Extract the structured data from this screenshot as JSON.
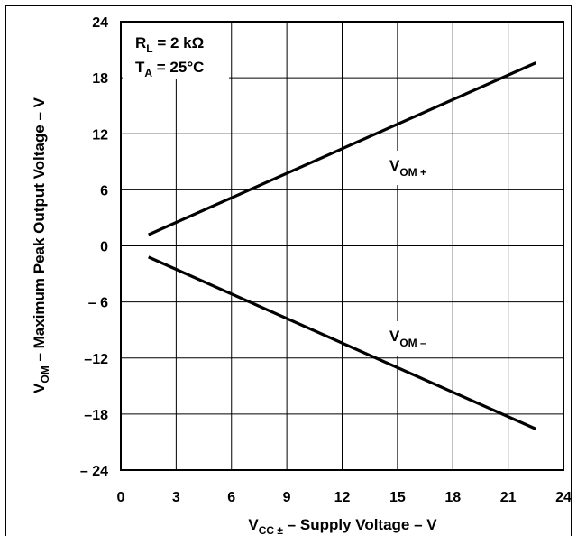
{
  "chart_data": {
    "type": "line",
    "xlabel": {
      "main": "V",
      "sub": "CC ±",
      "rest": " – Supply Voltage – V"
    },
    "ylabel": {
      "main": "V",
      "sub": "OM",
      "rest": " – Maximum Peak Output Voltage – V"
    },
    "xlim": [
      0,
      24
    ],
    "ylim": [
      -24,
      24
    ],
    "x_ticks": [
      0,
      3,
      6,
      9,
      12,
      15,
      18,
      21,
      24
    ],
    "y_ticks": [
      24,
      18,
      12,
      6,
      0,
      -6,
      -12,
      -18,
      -24
    ],
    "x_tick_labels": [
      "0",
      "3",
      "6",
      "9",
      "12",
      "15",
      "18",
      "21",
      "24"
    ],
    "y_tick_labels": [
      "24",
      "18",
      "12",
      "6",
      "0",
      "– 6",
      "–12",
      "–18",
      "– 24"
    ],
    "grid": true,
    "annotations": {
      "rl": {
        "main": "R",
        "sub": "L",
        "rest": " = 2 kΩ"
      },
      "ta": {
        "main": "T",
        "sub": "A",
        "rest": " = 25°C"
      }
    },
    "series": [
      {
        "name": {
          "main": "V",
          "sub": "OM +"
        },
        "x": [
          1.5,
          22.5
        ],
        "y": [
          1.2,
          19.6
        ]
      },
      {
        "name": {
          "main": "V",
          "sub": "OM –"
        },
        "x": [
          1.5,
          22.5
        ],
        "y": [
          -1.2,
          -19.6
        ]
      }
    ]
  }
}
